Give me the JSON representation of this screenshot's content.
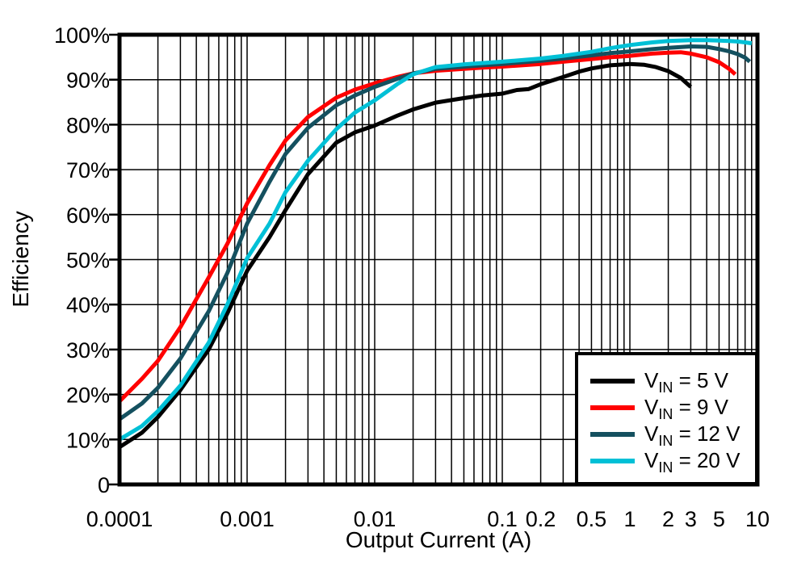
{
  "figure": {
    "background": "#ffffff",
    "frame_color": "#000000",
    "grid_color": "#000000"
  },
  "chart_data": {
    "type": "line",
    "title": "",
    "xlabel": "Output Current (A)",
    "ylabel": "Efficiency",
    "x_scale": "log",
    "y_scale": "linear",
    "xlim": [
      0.0001,
      10
    ],
    "ylim": [
      0,
      100
    ],
    "grid": {
      "vertical": "log decades with 2-9 minors",
      "horizontal": "every 10%",
      "on": true
    },
    "legend_position": "bottom-right",
    "x_ticks": [
      {
        "value": 0.0001,
        "label": "0.0001"
      },
      {
        "value": 0.001,
        "label": "0.001"
      },
      {
        "value": 0.01,
        "label": "0.01"
      },
      {
        "value": 0.1,
        "label": "0.1"
      },
      {
        "value": 0.2,
        "label": "0.2"
      },
      {
        "value": 0.5,
        "label": "0.5"
      },
      {
        "value": 1,
        "label": "1"
      },
      {
        "value": 2,
        "label": "2"
      },
      {
        "value": 3,
        "label": "3"
      },
      {
        "value": 5,
        "label": "5"
      },
      {
        "value": 10,
        "label": "10"
      }
    ],
    "y_ticks": [
      {
        "value": 0,
        "label": "0"
      },
      {
        "value": 10,
        "label": "10%"
      },
      {
        "value": 20,
        "label": "20%"
      },
      {
        "value": 30,
        "label": "30%"
      },
      {
        "value": 40,
        "label": "40%"
      },
      {
        "value": 50,
        "label": "50%"
      },
      {
        "value": 60,
        "label": "60%"
      },
      {
        "value": 70,
        "label": "70%"
      },
      {
        "value": 80,
        "label": "80%"
      },
      {
        "value": 90,
        "label": "90%"
      },
      {
        "value": 100,
        "label": "100%"
      }
    ],
    "series": [
      {
        "id": "vin-5v",
        "label": {
          "base": "V",
          "sub": "IN",
          "rest": " = 5 V"
        },
        "color": "#000000",
        "points": [
          [
            0.0001,
            8.3
          ],
          [
            0.00015,
            11.5
          ],
          [
            0.0002,
            15
          ],
          [
            0.0003,
            21
          ],
          [
            0.0005,
            30
          ],
          [
            0.0007,
            38
          ],
          [
            0.001,
            47.5
          ],
          [
            0.0015,
            55
          ],
          [
            0.002,
            61
          ],
          [
            0.003,
            69
          ],
          [
            0.005,
            76
          ],
          [
            0.007,
            78.3
          ],
          [
            0.01,
            79.8
          ],
          [
            0.015,
            82
          ],
          [
            0.02,
            83.4
          ],
          [
            0.03,
            84.9
          ],
          [
            0.05,
            85.9
          ],
          [
            0.07,
            86.5
          ],
          [
            0.1,
            86.9
          ],
          [
            0.13,
            87.7
          ],
          [
            0.16,
            87.9
          ],
          [
            0.2,
            89
          ],
          [
            0.3,
            90.6
          ],
          [
            0.4,
            91.8
          ],
          [
            0.5,
            92.5
          ],
          [
            0.7,
            93.2
          ],
          [
            1,
            93.5
          ],
          [
            1.3,
            93.3
          ],
          [
            1.6,
            92.8
          ],
          [
            2,
            91.9
          ],
          [
            2.5,
            90.4
          ],
          [
            3,
            88.4
          ]
        ]
      },
      {
        "id": "vin-9v",
        "label": {
          "base": "V",
          "sub": "IN",
          "rest": " = 9 V"
        },
        "color": "#ff0000",
        "points": [
          [
            0.0001,
            18.5
          ],
          [
            0.00015,
            23.5
          ],
          [
            0.0002,
            27.5
          ],
          [
            0.0003,
            35
          ],
          [
            0.0005,
            46
          ],
          [
            0.0007,
            53.5
          ],
          [
            0.001,
            62.5
          ],
          [
            0.0015,
            71
          ],
          [
            0.002,
            76.5
          ],
          [
            0.003,
            81.7
          ],
          [
            0.005,
            86
          ],
          [
            0.007,
            87.8
          ],
          [
            0.01,
            89.2
          ],
          [
            0.015,
            90.6
          ],
          [
            0.02,
            91.4
          ],
          [
            0.03,
            92
          ],
          [
            0.05,
            92.4
          ],
          [
            0.07,
            92.7
          ],
          [
            0.1,
            92.9
          ],
          [
            0.2,
            93.5
          ],
          [
            0.3,
            94
          ],
          [
            0.5,
            94.6
          ],
          [
            0.7,
            95
          ],
          [
            1,
            95.3
          ],
          [
            1.5,
            95.8
          ],
          [
            2,
            96
          ],
          [
            2.5,
            96.1
          ],
          [
            3,
            95.8
          ],
          [
            4,
            95
          ],
          [
            5,
            93.9
          ],
          [
            6,
            92.4
          ],
          [
            6.7,
            91.2
          ]
        ]
      },
      {
        "id": "vin-12v",
        "label": {
          "base": "V",
          "sub": "IN",
          "rest": " = 12 V"
        },
        "color": "#14505f",
        "points": [
          [
            0.0001,
            14.5
          ],
          [
            0.00015,
            18
          ],
          [
            0.0002,
            21.5
          ],
          [
            0.0003,
            28
          ],
          [
            0.0005,
            38.5
          ],
          [
            0.0007,
            47
          ],
          [
            0.001,
            58
          ],
          [
            0.0015,
            67.3
          ],
          [
            0.002,
            73.5
          ],
          [
            0.003,
            79.3
          ],
          [
            0.005,
            84.3
          ],
          [
            0.007,
            86.5
          ],
          [
            0.01,
            88.4
          ],
          [
            0.015,
            90.2
          ],
          [
            0.02,
            91.4
          ],
          [
            0.03,
            92.4
          ],
          [
            0.05,
            92.9
          ],
          [
            0.07,
            93.2
          ],
          [
            0.1,
            93.5
          ],
          [
            0.2,
            94.2
          ],
          [
            0.3,
            94.7
          ],
          [
            0.5,
            95.4
          ],
          [
            0.7,
            95.9
          ],
          [
            1,
            96.3
          ],
          [
            1.5,
            96.8
          ],
          [
            2,
            97.1
          ],
          [
            3,
            97.4
          ],
          [
            4,
            97.3
          ],
          [
            5,
            96.8
          ],
          [
            6,
            96.3
          ],
          [
            7,
            95.7
          ],
          [
            8,
            94.9
          ],
          [
            8.7,
            94
          ]
        ]
      },
      {
        "id": "vin-20v",
        "label": {
          "base": "V",
          "sub": "IN",
          "rest": " = 20 V"
        },
        "color": "#00c0d6",
        "points": [
          [
            0.0001,
            10
          ],
          [
            0.00015,
            13
          ],
          [
            0.0002,
            16.3
          ],
          [
            0.0003,
            22
          ],
          [
            0.0005,
            31.5
          ],
          [
            0.0007,
            40
          ],
          [
            0.001,
            50.3
          ],
          [
            0.0015,
            58
          ],
          [
            0.002,
            65
          ],
          [
            0.003,
            72
          ],
          [
            0.005,
            79
          ],
          [
            0.007,
            82.7
          ],
          [
            0.01,
            85.4
          ],
          [
            0.015,
            89
          ],
          [
            0.02,
            91.2
          ],
          [
            0.03,
            92.8
          ],
          [
            0.05,
            93.4
          ],
          [
            0.07,
            93.7
          ],
          [
            0.1,
            94
          ],
          [
            0.2,
            94.7
          ],
          [
            0.3,
            95.3
          ],
          [
            0.5,
            96.2
          ],
          [
            0.7,
            97
          ],
          [
            1,
            97.7
          ],
          [
            1.5,
            98.3
          ],
          [
            2,
            98.6
          ],
          [
            3,
            98.8
          ],
          [
            4,
            98.8
          ],
          [
            5,
            98.7
          ],
          [
            6,
            98.6
          ],
          [
            7,
            98.5
          ],
          [
            8,
            98.3
          ],
          [
            9,
            98.1
          ]
        ]
      }
    ]
  }
}
